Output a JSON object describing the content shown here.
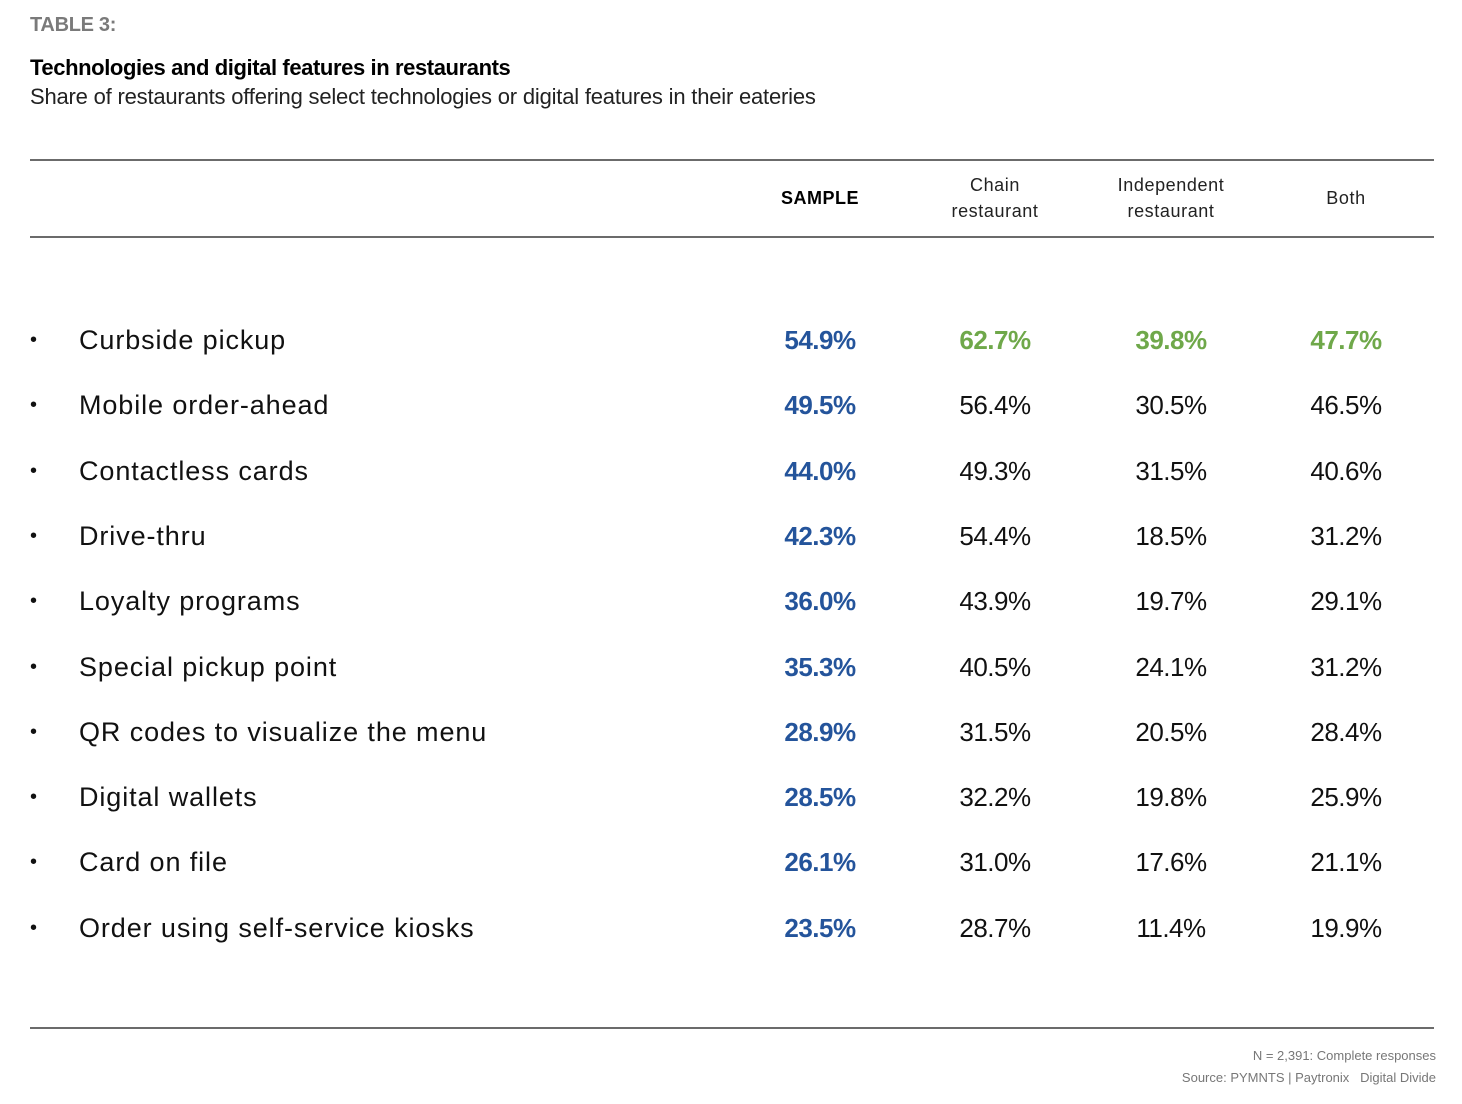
{
  "header": {
    "table_label": "TABLE 3:",
    "title": "Technologies and digital features in restaurants",
    "subtitle": "Share of restaurants offering select technologies or digital features in their eateries"
  },
  "colors": {
    "sample": "#24549b",
    "highlight": "#6fa84a",
    "default": "#111111"
  },
  "chart_data": {
    "type": "table",
    "title": "Technologies and digital features in restaurants",
    "subtitle": "Share of restaurants offering select technologies or digital features in their eateries",
    "columns": [
      {
        "label_line1": "",
        "label_line2": "SAMPLE",
        "key": "sample"
      },
      {
        "label_line1": "Chain",
        "label_line2": "restaurant",
        "key": "chain"
      },
      {
        "label_line1": "Independent",
        "label_line2": "restaurant",
        "key": "independent"
      },
      {
        "label_line1": "",
        "label_line2": "Both",
        "key": "both"
      }
    ],
    "bullet": "•",
    "rows": [
      {
        "feature": "Curbside pickup",
        "values": [
          "54.9%",
          "62.7%",
          "39.8%",
          "47.7%"
        ],
        "highlight": true
      },
      {
        "feature": "Mobile order-ahead",
        "values": [
          "49.5%",
          "56.4%",
          "30.5%",
          "46.5%"
        ],
        "highlight": false
      },
      {
        "feature": "Contactless cards",
        "values": [
          "44.0%",
          "49.3%",
          "31.5%",
          "40.6%"
        ],
        "highlight": false
      },
      {
        "feature": "Drive-thru",
        "values": [
          "42.3%",
          "54.4%",
          "18.5%",
          "31.2%"
        ],
        "highlight": false
      },
      {
        "feature": "Loyalty programs",
        "values": [
          "36.0%",
          "43.9%",
          "19.7%",
          "29.1%"
        ],
        "highlight": false
      },
      {
        "feature": "Special pickup point",
        "values": [
          "35.3%",
          "40.5%",
          "24.1%",
          "31.2%"
        ],
        "highlight": false
      },
      {
        "feature": "QR codes to visualize the menu",
        "values": [
          "28.9%",
          "31.5%",
          "20.5%",
          "28.4%"
        ],
        "highlight": false
      },
      {
        "feature": "Digital wallets",
        "values": [
          "28.5%",
          "32.2%",
          "19.8%",
          "25.9%"
        ],
        "highlight": false
      },
      {
        "feature": "Card on file",
        "values": [
          "26.1%",
          "31.0%",
          "17.6%",
          "21.1%"
        ],
        "highlight": false
      },
      {
        "feature": "Order using self-service kiosks",
        "values": [
          "23.5%",
          "28.7%",
          "11.4%",
          "19.9%"
        ],
        "highlight": false
      }
    ]
  },
  "footer": {
    "note": "N = 2,391: Complete responses",
    "source": "Source: PYMNTS | Paytronix   Digital Divide"
  }
}
